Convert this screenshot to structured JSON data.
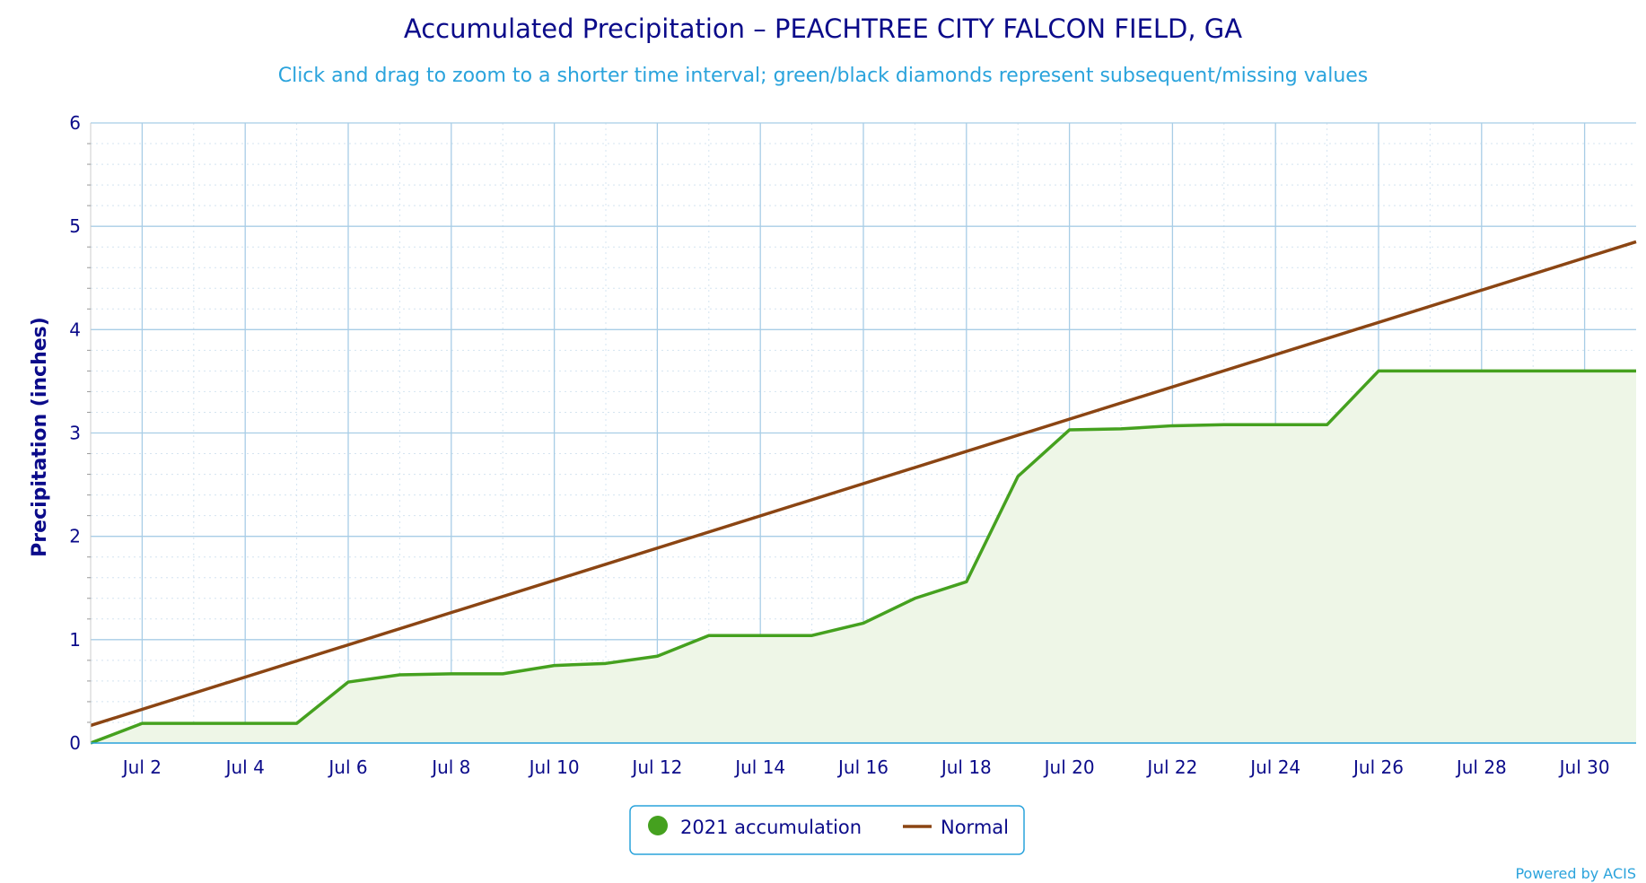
{
  "chart_data": {
    "type": "area",
    "title": "Accumulated Precipitation – PEACHTREE CITY FALCON FIELD, GA",
    "subtitle": "Click and drag to zoom to a shorter time interval; green/black diamonds represent subsequent/missing values",
    "xlabel": "",
    "ylabel": "Precipitation (inches)",
    "x_tick_labels": [
      "Jul 2",
      "Jul 4",
      "Jul 6",
      "Jul 8",
      "Jul 10",
      "Jul 12",
      "Jul 14",
      "Jul 16",
      "Jul 18",
      "Jul 20",
      "Jul 22",
      "Jul 24",
      "Jul 26",
      "Jul 28",
      "Jul 30"
    ],
    "x_tick_days": [
      2,
      4,
      6,
      8,
      10,
      12,
      14,
      16,
      18,
      20,
      22,
      24,
      26,
      28,
      30
    ],
    "xlim": [
      1,
      31
    ],
    "ylim": [
      0,
      6
    ],
    "y_ticks": [
      0,
      1,
      2,
      3,
      4,
      5,
      6
    ],
    "grid": true,
    "legend_position": "bottom-center",
    "credit": "Powered by ACIS",
    "colors": {
      "accumulation": "#45a11f",
      "accumulation_fill": "#eef6e7",
      "normal": "#8b4513",
      "grid": "#a8cde6",
      "axis": "#2aa3dc"
    },
    "series": [
      {
        "name": "2021 accumulation",
        "x": [
          1,
          2,
          3,
          4,
          5,
          6,
          7,
          8,
          9,
          10,
          11,
          12,
          13,
          14,
          15,
          16,
          17,
          18,
          19,
          20,
          21,
          22,
          23,
          24,
          25,
          26,
          27,
          28,
          29,
          30,
          31
        ],
        "values": [
          0.0,
          0.19,
          0.19,
          0.19,
          0.19,
          0.59,
          0.66,
          0.67,
          0.67,
          0.75,
          0.77,
          0.84,
          1.04,
          1.04,
          1.04,
          1.16,
          1.4,
          1.56,
          2.58,
          3.03,
          3.04,
          3.07,
          3.08,
          3.08,
          3.08,
          3.6,
          3.6,
          3.6,
          3.6,
          3.6,
          3.6
        ]
      },
      {
        "name": "Normal",
        "x": [
          1,
          31
        ],
        "values": [
          0.17,
          4.85
        ]
      }
    ]
  }
}
